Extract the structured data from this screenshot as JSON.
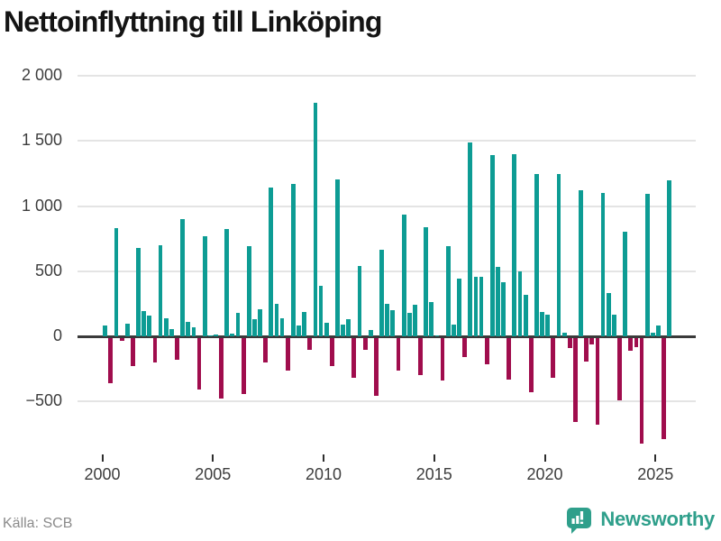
{
  "page": {
    "title": "Nettoinflyttning till Linköping",
    "source": "Källa: SCB"
  },
  "branding": {
    "name": "Newsworthy",
    "icon": "speech-bubble-bar-chart-icon",
    "color": "#2f9f8b"
  },
  "colors": {
    "positive_bar": "#0d9c94",
    "negative_bar": "#a00d4d",
    "grid": "#e4e4e4",
    "zero_axis": "#3a3a3a",
    "tick_text": "#3d3d3d",
    "title_text": "#141414",
    "source_text": "#8b8b8b",
    "background": "#ffffff"
  },
  "chart_data": {
    "type": "bar",
    "title": "Nettoinflyttning till Linköping",
    "unit": "personer (net migration per quarter)",
    "x_frequency": "quarterly",
    "x_start": "2000 K1",
    "x_end": "2025 K3",
    "grid": true,
    "legend": "none",
    "ylim": [
      -900,
      2050
    ],
    "yticks": [
      2000,
      1500,
      1000,
      500,
      0,
      -500
    ],
    "ytick_labels": [
      "2 000",
      "1 500",
      "1 000",
      "500",
      "0",
      "−500"
    ],
    "xtick_years": [
      2000,
      2005,
      2010,
      2015,
      2020,
      2025
    ],
    "xtick_labels": [
      "2000",
      "2005",
      "2010",
      "2015",
      "2020",
      "2025"
    ],
    "values": [
      80,
      -350,
      830,
      -25,
      95,
      -220,
      680,
      195,
      160,
      -190,
      700,
      135,
      55,
      -170,
      900,
      110,
      70,
      -400,
      765,
      10,
      15,
      -465,
      825,
      20,
      180,
      -430,
      695,
      130,
      210,
      -190,
      1140,
      250,
      140,
      -255,
      1170,
      85,
      185,
      -95,
      1790,
      385,
      105,
      -220,
      1205,
      90,
      130,
      -305,
      540,
      -90,
      50,
      -445,
      665,
      250,
      200,
      -250,
      935,
      180,
      240,
      -290,
      835,
      265,
      10,
      -330,
      695,
      90,
      440,
      -150,
      1490,
      455,
      455,
      -205,
      1390,
      535,
      415,
      -320,
      1400,
      500,
      315,
      -420,
      1245,
      185,
      165,
      -305,
      1245,
      30,
      -80,
      -650,
      1120,
      -180,
      -50,
      -670,
      1100,
      335,
      165,
      -480,
      800,
      -100,
      -75,
      -815,
      1090,
      25,
      85,
      -780,
      1195
    ]
  }
}
